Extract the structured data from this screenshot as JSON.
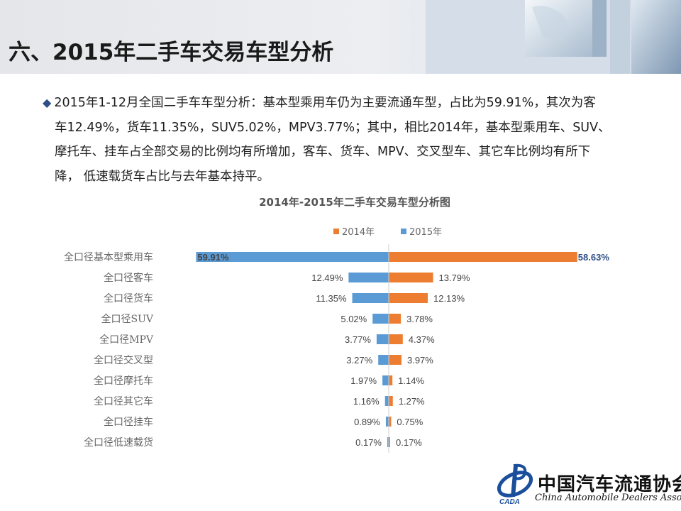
{
  "header": {
    "title": "六、2015年二手车交易车型分析"
  },
  "summary": {
    "bullet": "◆",
    "lines": [
      "2015年1-12月全国二手车车型分析：基本型乘用车仍为主要流通车型，占比为59.91%，其次为客",
      "车12.49%，货车11.35%，SUV5.02%，MPV3.77%；其中，相比2014年，基本型乘用车、SUV、",
      "摩托车、挂车占全部交易的比例均有所增加，客车、货车、MPV、交叉型车、其它车比例均有所下",
      "降， 低速载货车占比与去年基本持平。"
    ]
  },
  "chart_data": {
    "type": "bar",
    "orientation": "horizontal-butterfly",
    "title": "2014年-2015年二手车交易车型分析图",
    "legend_position": "top-right",
    "categories": [
      "全口径基本型乘用车",
      "全口径客车",
      "全口径货车",
      "全口径SUV",
      "全口径MPV",
      "全口径交叉型",
      "全口径摩托车",
      "全口径其它车",
      "全口径挂车",
      "全口径低速载货"
    ],
    "series": [
      {
        "name": "2014年",
        "color": "#ed7d31",
        "side": "right",
        "values": [
          58.63,
          13.79,
          12.13,
          3.78,
          4.37,
          3.97,
          1.14,
          1.27,
          0.75,
          0.17
        ],
        "labels": [
          "58.63%",
          "13.79%",
          "12.13%",
          "3.78%",
          "4.37%",
          "3.97%",
          "1.14%",
          "1.27%",
          "0.75%",
          "0.17%"
        ]
      },
      {
        "name": "2015年",
        "color": "#5b9bd5",
        "side": "left",
        "values": [
          59.91,
          12.49,
          11.35,
          5.02,
          3.77,
          3.27,
          1.97,
          1.16,
          0.89,
          0.17
        ],
        "labels": [
          "59.91%",
          "12.49%",
          "11.35%",
          "5.02%",
          "3.77%",
          "3.27%",
          "1.97%",
          "1.16%",
          "0.89%",
          "0.17%"
        ]
      }
    ],
    "grid": false
  },
  "logo": {
    "name_cn": "中国汽车流通协会",
    "name_en": "China Automobile Dealers Association",
    "abbr": "CADA"
  }
}
